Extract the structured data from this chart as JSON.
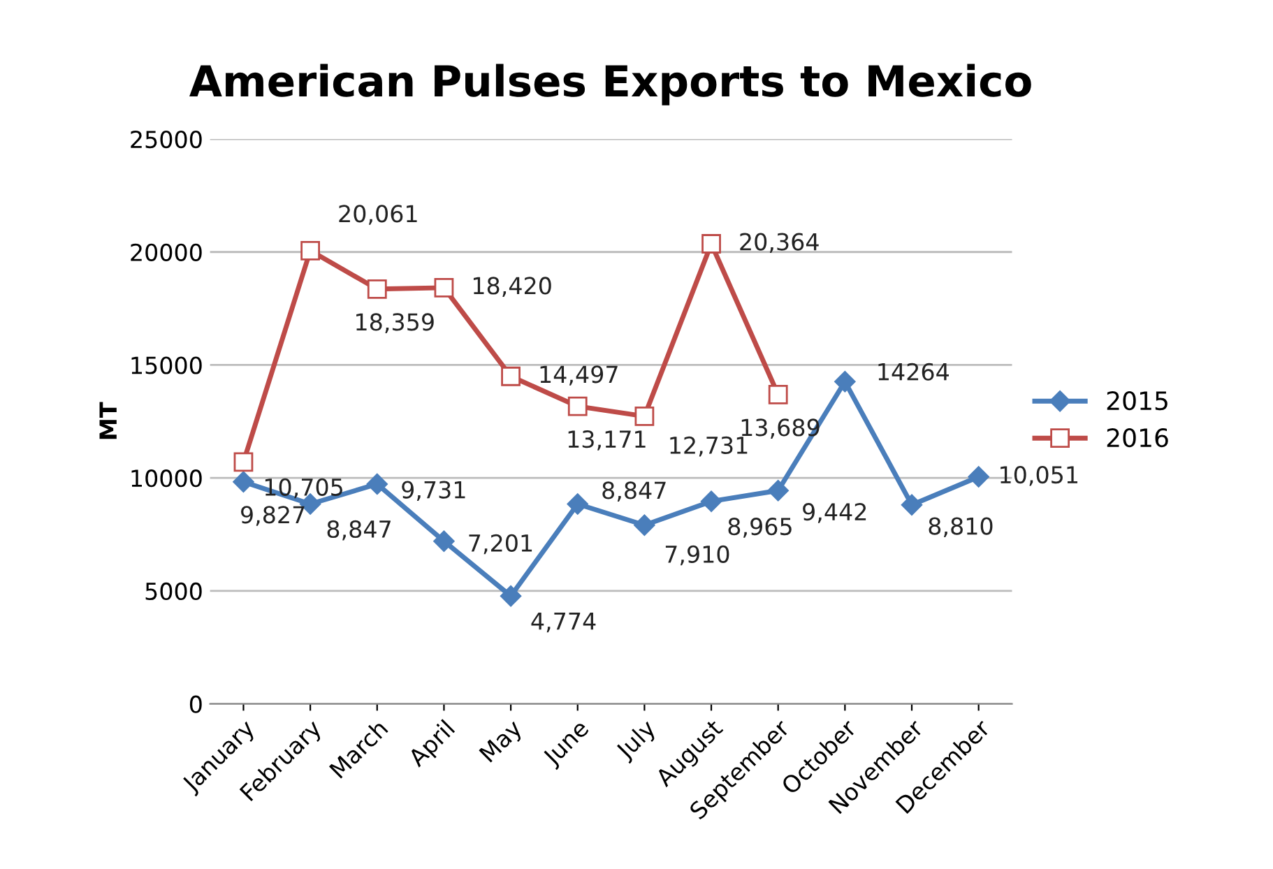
{
  "chart_data": {
    "type": "line",
    "title": "American Pulses Exports to Mexico",
    "ylabel": "MT",
    "categories": [
      "January",
      "February",
      "March",
      "April",
      "May",
      "June",
      "July",
      "August",
      "September",
      "October",
      "November",
      "December"
    ],
    "series": [
      {
        "name": "2015",
        "color": "#4a7ebb",
        "marker": "diamond",
        "values": [
          9827,
          8847,
          9731,
          7201,
          4774,
          8847,
          7910,
          8965,
          9442,
          14264,
          8810,
          10051
        ],
        "value_labels": [
          "9,827",
          "8,847",
          "9,731",
          "7,201",
          "4,774",
          "8,847",
          "7,910",
          "8,965",
          "9,442",
          "14264",
          "8,810",
          "10,051"
        ]
      },
      {
        "name": "2016",
        "color": "#be4b48",
        "marker": "square",
        "values": [
          10705,
          20061,
          18359,
          18420,
          14497,
          13171,
          12731,
          20364,
          13689,
          null,
          null,
          null
        ],
        "value_labels": [
          "10,705",
          "20,061",
          "18,359",
          "18,420",
          "14,497",
          "13,171",
          "12,731",
          "20,364",
          "13,689",
          null,
          null,
          null
        ]
      }
    ],
    "ylim": [
      0,
      25000
    ],
    "yticks": [
      0,
      5000,
      10000,
      15000,
      20000,
      25000
    ],
    "grid": "y",
    "legend": "right",
    "line_style": "solid"
  }
}
